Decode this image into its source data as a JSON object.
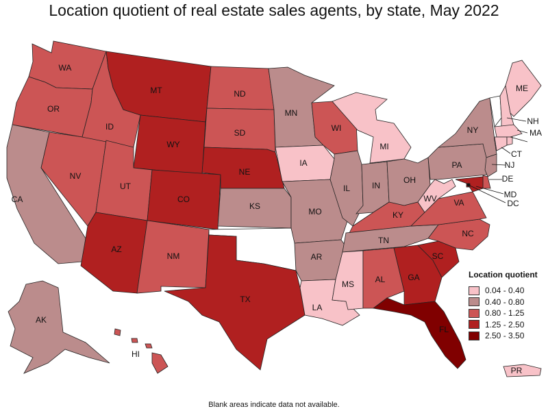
{
  "title": "Location quotient of real estate sales agents, by state, May 2022",
  "footnote": "Blank areas indicate data not available.",
  "legend": {
    "title": "Location quotient",
    "items": [
      {
        "label": "0.04 - 0.40",
        "color": "#f8c2c8"
      },
      {
        "label": "0.40 - 0.80",
        "color": "#bb8c8c"
      },
      {
        "label": "0.80 - 1.25",
        "color": "#cc5555"
      },
      {
        "label": "1.25 - 2.50",
        "color": "#b02020"
      },
      {
        "label": "2.50 - 3.50",
        "color": "#800000"
      }
    ]
  },
  "states": {
    "WA": {
      "class": 2
    },
    "OR": {
      "class": 2
    },
    "CA": {
      "class": 1
    },
    "NV": {
      "class": 2
    },
    "ID": {
      "class": 2
    },
    "MT": {
      "class": 3
    },
    "WY": {
      "class": 3
    },
    "UT": {
      "class": 2
    },
    "AZ": {
      "class": 3
    },
    "CO": {
      "class": 3
    },
    "NM": {
      "class": 2
    },
    "ND": {
      "class": 2
    },
    "SD": {
      "class": 2
    },
    "NE": {
      "class": 3
    },
    "KS": {
      "class": 1
    },
    "OK": {
      "class": null
    },
    "TX": {
      "class": 3
    },
    "MN": {
      "class": 1
    },
    "IA": {
      "class": 0
    },
    "MO": {
      "class": 1
    },
    "AR": {
      "class": 1
    },
    "LA": {
      "class": 0
    },
    "WI": {
      "class": 2
    },
    "IL": {
      "class": 1
    },
    "MI": {
      "class": 0
    },
    "IN": {
      "class": 1
    },
    "OH": {
      "class": 1
    },
    "KY": {
      "class": 2
    },
    "TN": {
      "class": 1
    },
    "MS": {
      "class": 0
    },
    "AL": {
      "class": 2
    },
    "GA": {
      "class": 3
    },
    "FL": {
      "class": 4
    },
    "SC": {
      "class": 3
    },
    "NC": {
      "class": 2
    },
    "VA": {
      "class": 2
    },
    "WV": {
      "class": 0
    },
    "PA": {
      "class": 1
    },
    "NY": {
      "class": 1
    },
    "VT": {
      "class": null
    },
    "NH": {
      "class": 0
    },
    "ME": {
      "class": 0
    },
    "MA": {
      "class": 0
    },
    "CT": {
      "class": 0
    },
    "RI": {
      "class": 0
    },
    "NJ": {
      "class": 1
    },
    "DE": {
      "class": 2
    },
    "MD": {
      "class": 3
    },
    "DC": {
      "class": 3
    },
    "AK": {
      "class": 1
    },
    "HI": {
      "class": 2
    },
    "PR": {
      "class": 0
    }
  }
}
